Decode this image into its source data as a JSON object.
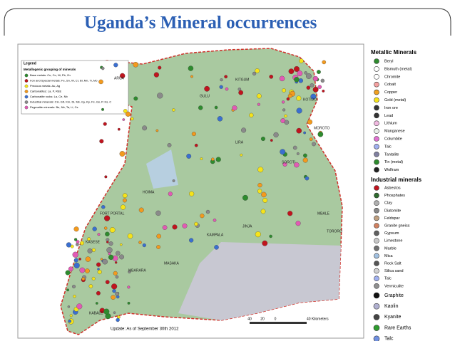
{
  "title": "Uganda’s Mineral occurrences",
  "map": {
    "inset_legend": {
      "heading": "Legend",
      "subheading": "Metallogenic grouping of minerals",
      "entries": [
        {
          "label": "Base metals: Cu, Co, Ni, Pb, Zn",
          "color": "#2e8b2e"
        },
        {
          "label": "Iron and Special metals: Fe, Sn, W, Cr, Bi, Mn, Ti, Mo",
          "color": "#c0141e"
        },
        {
          "label": "Precious metals: Au, Ag",
          "color": "#f5e31a"
        },
        {
          "label": "Carbonatites: La, P, REE",
          "color": "#f39a1e"
        },
        {
          "label": "Carbonatite rocks: La, Ce, Nb",
          "color": "#3a6fd0"
        },
        {
          "label": "Industrial minerals: CH, Gtt, Km, Di, Ms, Gy, Kp, Fs, Gs, P, Ks, C",
          "color": "#8a8a8a"
        },
        {
          "label": "Pegmatite minerals: Be, Nb, Ta, Li, Cs",
          "color": "#e25ab4"
        }
      ]
    },
    "places": [
      "ARUA",
      "KITGUM",
      "GULU",
      "KOTIDO",
      "MOROTO",
      "LIRA",
      "SOROTI",
      "HOIMA",
      "FORT PORTAL",
      "MBALE",
      "JINJA",
      "KAMPALA",
      "TORORO",
      "KASESE",
      "MASAKA",
      "MBARARA",
      "KABALE"
    ],
    "update": "Update: As of September 30th 2012",
    "scale": [
      "40",
      "20",
      "0",
      "40 Kilometers"
    ]
  },
  "legend": {
    "metallic": {
      "heading": "Metallic Minerals",
      "items": [
        {
          "label": "Beryl",
          "color": "#2e8b2e"
        },
        {
          "label": "Bismuth (metal)",
          "color": "#ffffff"
        },
        {
          "label": "Chromite",
          "color": "#ffffff"
        },
        {
          "label": "Cobalt",
          "color": "#f4a0a0"
        },
        {
          "label": "Copper",
          "color": "#f0a020"
        },
        {
          "label": "Gold (metal)",
          "color": "#f5e31a"
        },
        {
          "label": "Iron ore",
          "color": "#333333"
        },
        {
          "label": "Lead",
          "color": "#333333"
        },
        {
          "label": "Lithium",
          "color": "#f0b8e0"
        },
        {
          "label": "Manganese",
          "color": "#e8f0e8"
        },
        {
          "label": "Columbite",
          "color": "#e070d0"
        },
        {
          "label": "Talc",
          "color": "#a0b0f0"
        },
        {
          "label": "Tantalite",
          "color": "#8080a0"
        },
        {
          "label": "Tin (metal)",
          "color": "#2e8b2e"
        },
        {
          "label": "Wolfram",
          "color": "#222222"
        }
      ]
    },
    "industrial": {
      "heading": "Industrial minerals",
      "items": [
        {
          "label": "Asbestos",
          "color": "#c0141e"
        },
        {
          "label": "Phosphates",
          "color": "#2e6b2e"
        },
        {
          "label": "Clay",
          "color": "#b0b0b0"
        },
        {
          "label": "Diatomite",
          "color": "#888888"
        },
        {
          "label": "Feldspar",
          "color": "#c0a080"
        },
        {
          "label": "Granite gneiss",
          "color": "#d08060"
        },
        {
          "label": "Gypsum",
          "color": "#606060"
        },
        {
          "label": "Limestone",
          "color": "#c8c8c8"
        },
        {
          "label": "Marble",
          "color": "#707070"
        },
        {
          "label": "Mica",
          "color": "#a0c0e0"
        },
        {
          "label": "Rock Salt",
          "color": "#555555"
        },
        {
          "label": "Silica sand",
          "color": "#d0d0d0"
        },
        {
          "label": "Talc",
          "color": "#a0b0f0"
        },
        {
          "label": "Vermiculite",
          "color": "#909090"
        },
        {
          "label": "Graphite",
          "color": "#111111"
        },
        {
          "label": "Kaolin",
          "color": "#b0b0d0"
        },
        {
          "label": "Kyanite",
          "color": "#444444"
        },
        {
          "label": "Rare Earths",
          "color": "#2e9b2e"
        },
        {
          "label": "Talc",
          "color": "#7090e0"
        }
      ]
    }
  }
}
